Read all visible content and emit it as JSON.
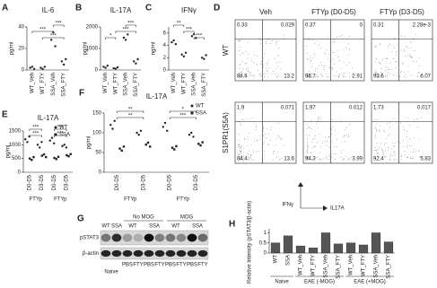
{
  "panel_labels": [
    "A",
    "B",
    "C",
    "D",
    "E",
    "F",
    "G",
    "H"
  ],
  "chart_data": [
    {
      "type": "dot",
      "title": "IL-6",
      "ylabel": "pg/ml",
      "color": "#222",
      "categories": [
        "WT_Veh",
        "WT_FTY",
        "SSA_Veh",
        "SSA_FTY"
      ],
      "values": [
        [
          2,
          3,
          1
        ],
        [
          2,
          1,
          3
        ],
        [
          28,
          35,
          22
        ],
        [
          8,
          5,
          10
        ]
      ],
      "ylim": [
        0,
        40
      ],
      "yticks": [
        0,
        20,
        40
      ],
      "annotations": [
        "***",
        "***",
        "***"
      ]
    },
    {
      "type": "dot",
      "title": "IL-17A",
      "ylabel": "pg/ml",
      "color": "#222",
      "categories": [
        "WT_Veh",
        "WT_FTY",
        "SSA_Veh",
        "SSA_FTY"
      ],
      "values": [
        [
          150,
          100,
          200
        ],
        [
          80,
          60,
          120
        ],
        [
          1500,
          1400,
          1650
        ],
        [
          400,
          300,
          500
        ]
      ],
      "ylim": [
        0,
        2000
      ],
      "yticks": [
        0,
        1000,
        2000
      ],
      "annotations": [
        "***",
        "*",
        "***"
      ]
    },
    {
      "type": "dot",
      "title": "IFNγ",
      "ylabel": "ng/ml",
      "color": "#222",
      "categories": [
        "WT_Veh",
        "WT_FTY",
        "SSA_Veh",
        "SSA_FTY"
      ],
      "values": [
        [
          4.5,
          4.8,
          4.2
        ],
        [
          2.5,
          2.2,
          2.8
        ],
        [
          5.5,
          5.8,
          5.2
        ],
        [
          2.0,
          1.8,
          2.4
        ]
      ],
      "ylim": [
        0,
        7
      ],
      "yticks": [
        0,
        2,
        4,
        6
      ],
      "annotations": [
        "**",
        "***",
        "***"
      ]
    },
    {
      "type": "dot",
      "title": "IL-17A",
      "ylabel": "pg/ml",
      "categories": [
        "D0-D5",
        "D3-D5",
        "D0-D5",
        "D3-D5"
      ],
      "groups": [
        "FTYp",
        "FTYp"
      ],
      "series": [
        {
          "name": "WT",
          "marker": "circle",
          "color": "#222",
          "values": [
            [
              1200,
              1100,
              1300
            ],
            [
              1000,
              900,
              1100
            ],
            [
              1150,
              1250,
              1050
            ],
            [
              950,
              1000,
              900
            ]
          ]
        },
        {
          "name": "SSA",
          "marker": "square",
          "color": "#222",
          "values": [
            [
              500,
              450,
              550
            ],
            [
              600,
              650,
              550
            ],
            [
              520,
              480,
              560
            ],
            [
              620,
              580,
              660
            ]
          ]
        }
      ],
      "ylim": [
        0,
        1500
      ],
      "yticks": [
        0,
        500,
        1000,
        1500
      ],
      "annotations": [
        "***",
        "***",
        "***",
        "***"
      ]
    },
    {
      "type": "dot",
      "title": "IL-17A",
      "ylabel": "pg/ml",
      "categories": [
        "D0-D5",
        "D3-D5",
        "D0-D5",
        "D3-D5"
      ],
      "groups": [
        "FTYp",
        "FTYp"
      ],
      "series": [
        {
          "name": "WT",
          "marker": "circle",
          "color": "#222",
          "values": [
            [
              120,
              110,
              130
            ],
            [
              100,
              95,
              105
            ],
            [
              115,
              125,
              105
            ],
            [
              95,
              100,
              90
            ]
          ]
        },
        {
          "name": "SSA",
          "marker": "square",
          "color": "#222",
          "values": [
            [
              60,
              55,
              65
            ],
            [
              70,
              75,
              65
            ],
            [
              62,
              58,
              66
            ],
            [
              72,
              68,
              76
            ]
          ]
        }
      ],
      "ylim": [
        0,
        150
      ],
      "yticks": [
        0,
        50,
        100,
        150
      ],
      "annotations": [
        "**",
        "**",
        "*",
        "***"
      ]
    },
    {
      "type": "bar",
      "ylabel": "Relative Intensity (pSTAT3/β-actin)",
      "color": "#555",
      "categories": [
        "WT",
        "SSA",
        "WT_Veh",
        "WT_FTY",
        "SSA_Veh",
        "SSA_FTY",
        "WT_Veh",
        "WT_FTY",
        "SSA_Veh",
        "SSA_FTY"
      ],
      "values": [
        0.5,
        0.85,
        0.35,
        0.25,
        1.0,
        0.45,
        0.5,
        0.4,
        1.0,
        0.55
      ],
      "groups": [
        "Naive",
        "EAE (-MOG)",
        "EAE (+MOG)"
      ],
      "ylim": [
        0,
        1.2
      ],
      "yticks": [
        0,
        0.5,
        1
      ]
    }
  ],
  "flow": {
    "columns": [
      "Veh",
      "FTYp (D0-D5)",
      "FTYp (D3-D5)"
    ],
    "rows": [
      "WT",
      "S1PR1(S5A)"
    ],
    "quadrants": [
      [
        [
          "0.33",
          "0.029",
          "86.4",
          "13.2"
        ],
        [
          "0.37",
          "0",
          "96.7",
          "2.91"
        ],
        [
          "0.31",
          "2.28e-3",
          "93.6",
          "6.07"
        ]
      ],
      [
        [
          "1.9",
          "0.071",
          "84.4",
          "13.6"
        ],
        [
          "1.97",
          "0.012",
          "94.3",
          "3.99"
        ],
        [
          "1.73",
          "0.017",
          "92.4",
          "5.83"
        ]
      ]
    ],
    "xlabel": "IL17A",
    "ylabel": "IFNγ"
  },
  "blot": {
    "naive_labels": [
      "WT",
      "SSA"
    ],
    "groups": [
      {
        "name": "No MOG",
        "labels": [
          "WT",
          "SSA"
        ]
      },
      {
        "name": "MOG",
        "labels": [
          "WT",
          "SSA"
        ]
      }
    ],
    "row_labels": [
      "pSTAT3",
      "β-actin"
    ],
    "naive": "Naive",
    "treatments": [
      "PBS",
      "FTY",
      "PBS",
      "FTY",
      "PBS",
      "FTY",
      "PBS",
      "FTY"
    ]
  }
}
